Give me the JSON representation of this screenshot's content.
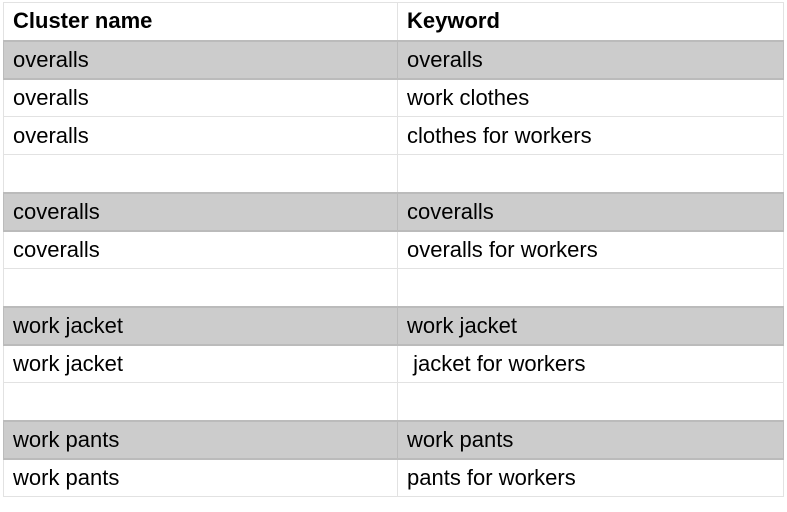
{
  "headers": {
    "cluster": "Cluster name",
    "keyword": "Keyword"
  },
  "colors": {
    "highlight_row": "#cccccc",
    "gridline": "#e2e2e2"
  },
  "rows": [
    {
      "cluster": "overalls",
      "keyword": "overalls",
      "highlight": true
    },
    {
      "cluster": "overalls",
      "keyword": "work clothes",
      "highlight": false
    },
    {
      "cluster": "overalls",
      "keyword": "clothes for workers",
      "highlight": false
    },
    {
      "cluster": "",
      "keyword": "",
      "highlight": false
    },
    {
      "cluster": "coveralls",
      "keyword": "coveralls",
      "highlight": true
    },
    {
      "cluster": "coveralls",
      "keyword": "overalls for workers",
      "highlight": false
    },
    {
      "cluster": "",
      "keyword": "",
      "highlight": false
    },
    {
      "cluster": "work jacket",
      "keyword": "work jacket",
      "highlight": true
    },
    {
      "cluster": "work jacket",
      "keyword": " jacket for workers",
      "highlight": false
    },
    {
      "cluster": "",
      "keyword": "",
      "highlight": false
    },
    {
      "cluster": "work pants",
      "keyword": "work pants",
      "highlight": true
    },
    {
      "cluster": "work pants",
      "keyword": "pants for workers",
      "highlight": false
    }
  ]
}
